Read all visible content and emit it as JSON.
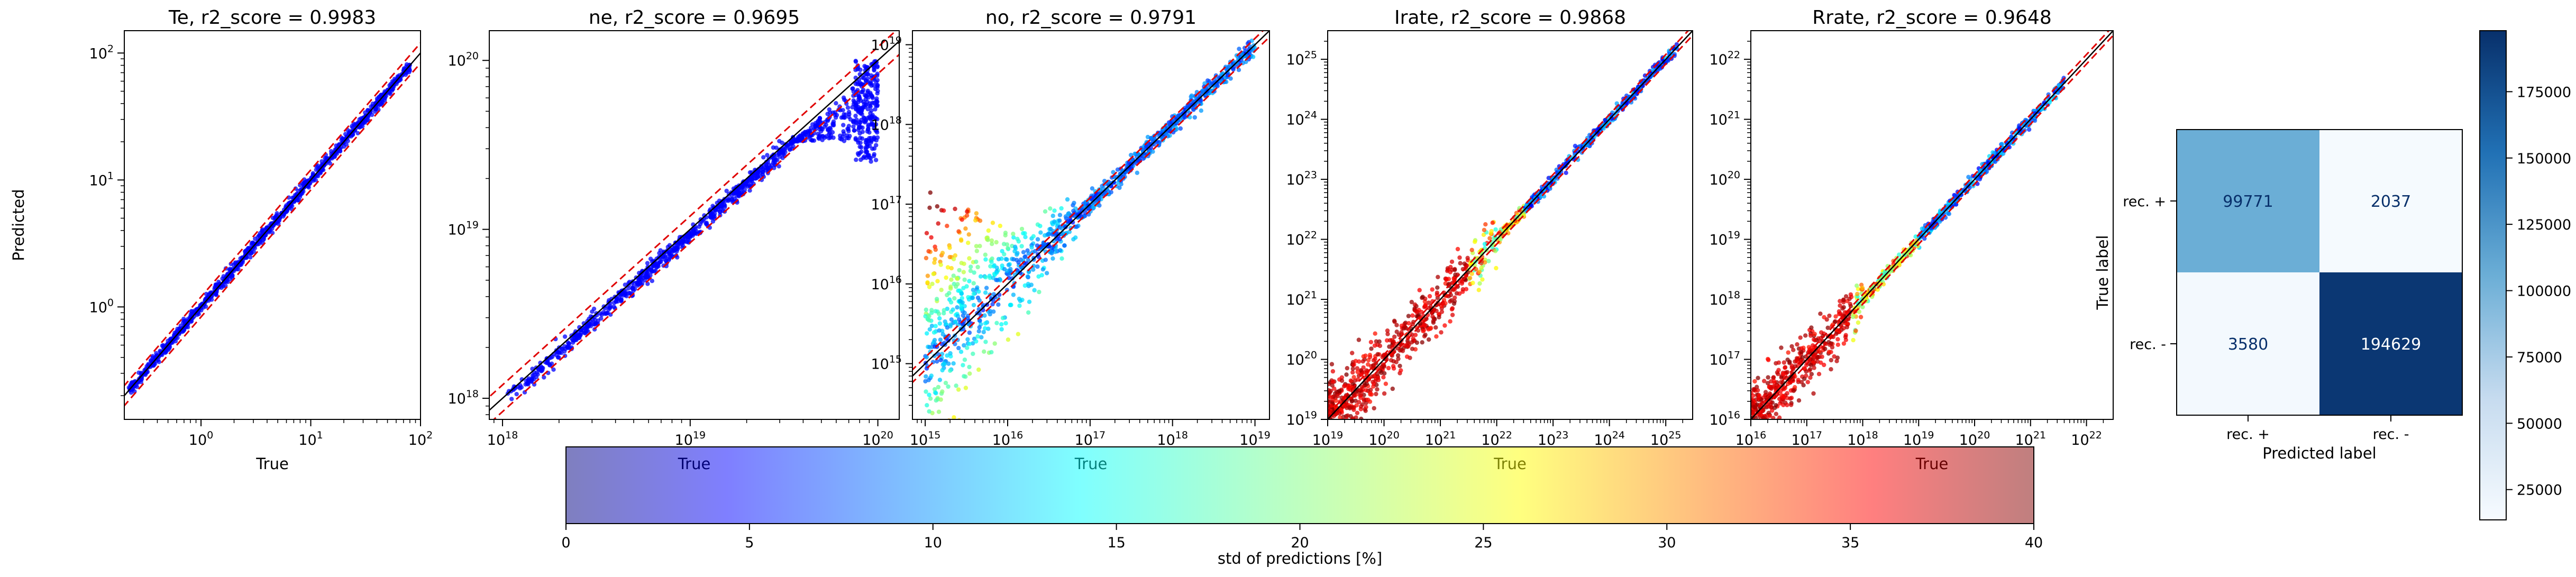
{
  "scatter_panels": [
    {
      "title": "Te, r2_score = 0.9983",
      "xlabel": "True",
      "ylabel": "Predicted",
      "xlim": [
        0.2,
        100
      ],
      "ylim": [
        0.13,
        150
      ],
      "scale": "log",
      "xticks": [
        {
          "base": "10",
          "exp": "0",
          "v": 1
        },
        {
          "base": "10",
          "exp": "1",
          "v": 10
        },
        {
          "base": "10",
          "exp": "2",
          "v": 100
        }
      ],
      "yticks": [
        {
          "base": "10",
          "exp": "0",
          "v": 1
        },
        {
          "base": "10",
          "exp": "1",
          "v": 10
        },
        {
          "base": "10",
          "exp": "2",
          "v": 100
        }
      ],
      "point_color_note": "blue",
      "band_factor": 1.2
    },
    {
      "title": "ne, r2_score = 0.9695",
      "xlabel": "True",
      "ylabel": "",
      "xlim": [
        8.5e+17,
        1.3e+20
      ],
      "ylim": [
        7.5e+17,
        1.5e+20
      ],
      "scale": "log",
      "xticks": [
        {
          "base": "10",
          "exp": "18",
          "v": 1e+18
        },
        {
          "base": "10",
          "exp": "19",
          "v": 1e+19
        },
        {
          "base": "10",
          "exp": "20",
          "v": 1e+20
        }
      ],
      "yticks": [
        {
          "base": "10",
          "exp": "18",
          "v": 1e+18
        },
        {
          "base": "10",
          "exp": "19",
          "v": 1e+19
        },
        {
          "base": "10",
          "exp": "20",
          "v": 1e+20
        }
      ],
      "point_color_note": "blue",
      "band_factor": 1.2
    },
    {
      "title": "no, r2_score = 0.9791",
      "xlabel": "True",
      "ylabel": "",
      "xlim": [
        700000000000000.0,
        1.5e+19
      ],
      "ylim": [
        200000000000000.0,
        1.5e+19
      ],
      "scale": "log",
      "xticks": [
        {
          "base": "10",
          "exp": "15",
          "v": 1000000000000000.0
        },
        {
          "base": "10",
          "exp": "16",
          "v": 1e+16
        },
        {
          "base": "10",
          "exp": "17",
          "v": 1e+17
        },
        {
          "base": "10",
          "exp": "18",
          "v": 1e+18
        },
        {
          "base": "10",
          "exp": "19",
          "v": 1e+19
        }
      ],
      "yticks": [
        {
          "base": "10",
          "exp": "15",
          "v": 1000000000000000.0
        },
        {
          "base": "10",
          "exp": "16",
          "v": 1e+16
        },
        {
          "base": "10",
          "exp": "17",
          "v": 1e+17
        },
        {
          "base": "10",
          "exp": "18",
          "v": 1e+18
        },
        {
          "base": "10",
          "exp": "19",
          "v": 1e+19
        }
      ],
      "point_color_note": "jet by std",
      "band_factor": 1.2
    },
    {
      "title": "Irate, r2_score = 0.9868",
      "xlabel": "True",
      "ylabel": "",
      "xlim": [
        1e+19,
        3e+25
      ],
      "ylim": [
        1e+19,
        3e+25
      ],
      "scale": "log",
      "xticks": [
        {
          "base": "10",
          "exp": "19",
          "v": 1e+19
        },
        {
          "base": "10",
          "exp": "20",
          "v": 1e+20
        },
        {
          "base": "10",
          "exp": "21",
          "v": 1e+21
        },
        {
          "base": "10",
          "exp": "22",
          "v": 1e+22
        },
        {
          "base": "10",
          "exp": "23",
          "v": 1e+23
        },
        {
          "base": "10",
          "exp": "24",
          "v": 1e+24
        },
        {
          "base": "10",
          "exp": "25",
          "v": 1e+25
        }
      ],
      "yticks": [
        {
          "base": "10",
          "exp": "19",
          "v": 1e+19
        },
        {
          "base": "10",
          "exp": "20",
          "v": 1e+20
        },
        {
          "base": "10",
          "exp": "21",
          "v": 1e+21
        },
        {
          "base": "10",
          "exp": "22",
          "v": 1e+22
        },
        {
          "base": "10",
          "exp": "23",
          "v": 1e+23
        },
        {
          "base": "10",
          "exp": "24",
          "v": 1e+24
        },
        {
          "base": "10",
          "exp": "25",
          "v": 1e+25
        }
      ],
      "point_color_note": "jet by std",
      "band_factor": 1.2
    },
    {
      "title": "Rrate, r2_score = 0.9648",
      "xlabel": "True",
      "ylabel": "",
      "xlim": [
        1e+16,
        3e+22
      ],
      "ylim": [
        1e+16,
        3e+22
      ],
      "scale": "log",
      "xticks": [
        {
          "base": "10",
          "exp": "16",
          "v": 1e+16
        },
        {
          "base": "10",
          "exp": "17",
          "v": 1e+17
        },
        {
          "base": "10",
          "exp": "18",
          "v": 1e+18
        },
        {
          "base": "10",
          "exp": "19",
          "v": 1e+19
        },
        {
          "base": "10",
          "exp": "20",
          "v": 1e+20
        },
        {
          "base": "10",
          "exp": "21",
          "v": 1e+21
        },
        {
          "base": "10",
          "exp": "22",
          "v": 1e+22
        }
      ],
      "yticks": [
        {
          "base": "10",
          "exp": "16",
          "v": 1e+16
        },
        {
          "base": "10",
          "exp": "17",
          "v": 1e+17
        },
        {
          "base": "10",
          "exp": "18",
          "v": 1e+18
        },
        {
          "base": "10",
          "exp": "19",
          "v": 1e+19
        },
        {
          "base": "10",
          "exp": "20",
          "v": 1e+20
        },
        {
          "base": "10",
          "exp": "21",
          "v": 1e+21
        },
        {
          "base": "10",
          "exp": "22",
          "v": 1e+22
        }
      ],
      "point_color_note": "jet by std",
      "band_factor": 1.2
    }
  ],
  "chart_data": [
    {
      "type": "scatter",
      "title": "Te, r2_score = 0.9983",
      "xlabel": "True",
      "ylabel": "Predicted",
      "x_range": [
        0.2,
        100
      ],
      "y_range": [
        0.13,
        150
      ],
      "log_scale": true,
      "reference_lines": [
        "y = x (black)",
        "y = x ± band (red dashed)"
      ],
      "approx_points": {
        "x": [
          0.22,
          0.5,
          1,
          2,
          5,
          10,
          20,
          50,
          80
        ],
        "y": [
          0.21,
          0.5,
          1,
          2,
          5,
          10,
          20,
          50,
          80
        ]
      }
    },
    {
      "type": "scatter",
      "title": "ne, r2_score = 0.9695",
      "xlabel": "True",
      "x_range": [
        8.5e+17,
        1.3e+20
      ],
      "y_range": [
        7.5e+17,
        1.5e+20
      ],
      "log_scale": true,
      "approx_points": {
        "x": [
          1.1e+18,
          3e+18,
          1e+19,
          3e+19,
          5e+19,
          8e+19,
          1e+20
        ],
        "y": [
          1.05e+18,
          2.8e+18,
          9e+18,
          2.8e+19,
          4.2e+19,
          5e+19,
          7e+19
        ]
      }
    },
    {
      "type": "scatter",
      "title": "no, r2_score = 0.9791",
      "xlabel": "True",
      "x_range": [
        700000000000000.0,
        1.5e+19
      ],
      "y_range": [
        200000000000000.0,
        1.5e+19
      ],
      "log_scale": true,
      "approx_points": {
        "x": [
          1000000000000000.0,
          3000000000000000.0,
          1e+16,
          1e+17,
          1e+18,
          1e+19
        ],
        "y": [
          1200000000000000.0,
          4000000000000000.0,
          1.2e+16,
          1e+17,
          1e+18,
          8e+18
        ]
      }
    },
    {
      "type": "scatter",
      "title": "Irate, r2_score = 0.9868",
      "xlabel": "True",
      "x_range": [
        1e+19,
        3e+25
      ],
      "y_range": [
        1e+19,
        3e+25
      ],
      "log_scale": true,
      "approx_points": {
        "x": [
          1e+19,
          1e+20,
          1e+21,
          1e+22,
          1e+23,
          1e+24,
          1e+25
        ],
        "y": [
          1e+19,
          1e+20,
          1e+21,
          1e+22,
          1e+23,
          1e+24,
          1e+25
        ]
      }
    },
    {
      "type": "scatter",
      "title": "Rrate, r2_score = 0.9648",
      "xlabel": "True",
      "x_range": [
        1e+16,
        3e+22
      ],
      "y_range": [
        1e+16,
        3e+22
      ],
      "log_scale": true,
      "approx_points": {
        "x": [
          1e+16,
          1e+17,
          1e+18,
          1e+19,
          1e+20,
          1e+21,
          3e+21
        ],
        "y": [
          1e+16,
          1e+17,
          1e+18,
          1e+19,
          1e+20,
          1e+21,
          3e+21
        ]
      }
    },
    {
      "type": "heatmap",
      "title": "",
      "xlabel": "Predicted label",
      "ylabel": "True label",
      "categories_x": [
        "rec. +",
        "rec. -"
      ],
      "categories_y": [
        "rec. +",
        "rec. -"
      ],
      "values": [
        [
          99771,
          2037
        ],
        [
          3580,
          194629
        ]
      ],
      "colorbar": {
        "range": [
          0,
          200000
        ],
        "ticks": [
          "25000",
          "50000",
          "75000",
          "100000",
          "125000",
          "150000",
          "175000"
        ],
        "colormap": "Blues"
      }
    }
  ],
  "confusion": {
    "xlabel": "Predicted label",
    "ylabel": "True label",
    "xticks": [
      "rec. +",
      "rec. -"
    ],
    "yticks": [
      "rec. +",
      "rec. -"
    ],
    "cells": [
      [
        99771,
        2037
      ],
      [
        3580,
        194629
      ]
    ],
    "vmin": 0,
    "vmax": 200000,
    "cbar_ticks": [
      {
        "v": 25000,
        "label": "25000"
      },
      {
        "v": 50000,
        "label": "50000"
      },
      {
        "v": 75000,
        "label": "75000"
      },
      {
        "v": 100000,
        "label": "100000"
      },
      {
        "v": 125000,
        "label": "125000"
      },
      {
        "v": 150000,
        "label": "150000"
      },
      {
        "v": 175000,
        "label": "175000"
      }
    ]
  },
  "std_colorbar": {
    "label": "std of predictions [%]",
    "range": [
      0,
      40
    ],
    "ticks": [
      {
        "v": 0,
        "label": "0"
      },
      {
        "v": 5,
        "label": "5"
      },
      {
        "v": 10,
        "label": "10"
      },
      {
        "v": 15,
        "label": "15"
      },
      {
        "v": 20,
        "label": "20"
      },
      {
        "v": 25,
        "label": "25"
      },
      {
        "v": 30,
        "label": "30"
      },
      {
        "v": 35,
        "label": "35"
      },
      {
        "v": 40,
        "label": "40"
      }
    ],
    "colormap": "jet (alpha 0.5)"
  }
}
